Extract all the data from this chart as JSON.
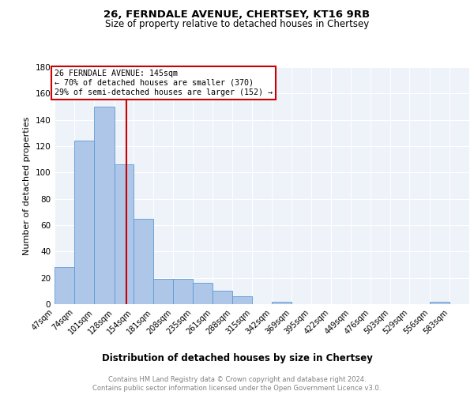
{
  "title1": "26, FERNDALE AVENUE, CHERTSEY, KT16 9RB",
  "title2": "Size of property relative to detached houses in Chertsey",
  "xlabel": "Distribution of detached houses by size in Chertsey",
  "ylabel": "Number of detached properties",
  "bar_labels": [
    "47sqm",
    "74sqm",
    "101sqm",
    "128sqm",
    "154sqm",
    "181sqm",
    "208sqm",
    "235sqm",
    "261sqm",
    "288sqm",
    "315sqm",
    "342sqm",
    "369sqm",
    "395sqm",
    "422sqm",
    "449sqm",
    "476sqm",
    "503sqm",
    "529sqm",
    "556sqm",
    "583sqm"
  ],
  "bar_values": [
    28,
    124,
    150,
    106,
    65,
    19,
    19,
    16,
    10,
    6,
    0,
    2,
    0,
    0,
    0,
    0,
    0,
    0,
    0,
    2,
    0
  ],
  "bar_color": "#aec6e8",
  "bar_edgecolor": "#5b9bd5",
  "property_line_x": 145,
  "bin_edges": [
    47,
    74,
    101,
    128,
    154,
    181,
    208,
    235,
    261,
    288,
    315,
    342,
    369,
    395,
    422,
    449,
    476,
    503,
    529,
    556,
    583,
    610
  ],
  "annotation_line1": "26 FERNDALE AVENUE: 145sqm",
  "annotation_line2": "← 70% of detached houses are smaller (370)",
  "annotation_line3": "29% of semi-detached houses are larger (152) →",
  "annotation_box_color": "#ffffff",
  "annotation_box_edgecolor": "#cc0000",
  "vline_color": "#cc0000",
  "ylim": [
    0,
    180
  ],
  "yticks": [
    0,
    20,
    40,
    60,
    80,
    100,
    120,
    140,
    160,
    180
  ],
  "footnote1": "Contains HM Land Registry data © Crown copyright and database right 2024.",
  "footnote2": "Contains public sector information licensed under the Open Government Licence v3.0.",
  "bg_color": "#eef2f9",
  "grid_color": "#ffffff"
}
